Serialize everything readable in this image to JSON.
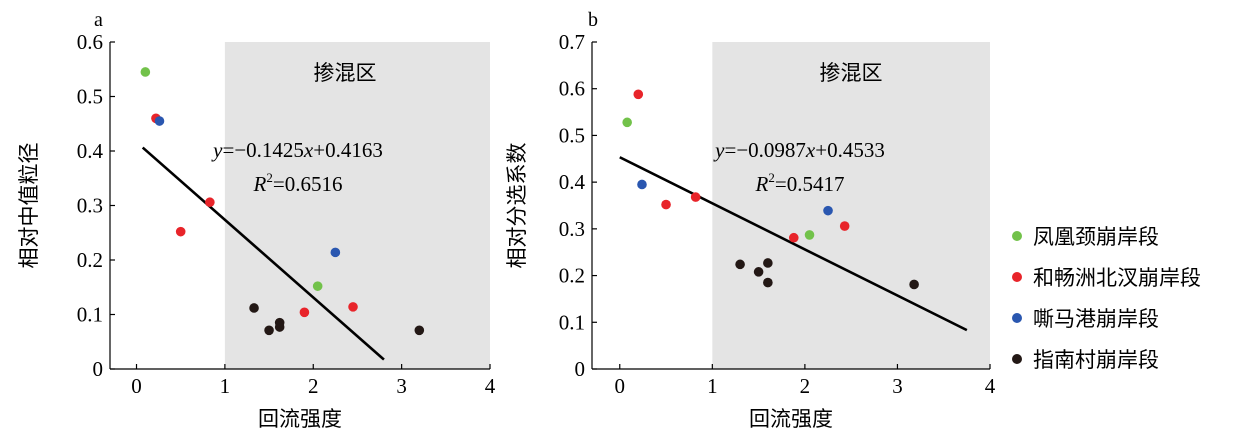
{
  "colors": {
    "shade": "#e4e4e4",
    "fenghuangjing": "#72c24a",
    "hechangzhou": "#e8242a",
    "simagang": "#2a57b0",
    "zhinancun": "#231815",
    "fit_line": "#000000"
  },
  "legend": {
    "placement": "right",
    "items": [
      {
        "label": "凤凰颈崩岸段",
        "color_key": "fenghuangjing"
      },
      {
        "label": "和畅洲北汊崩岸段",
        "color_key": "hechangzhou"
      },
      {
        "label": "嘶马港崩岸段",
        "color_key": "simagang"
      },
      {
        "label": "指南村崩岸段",
        "color_key": "zhinancun"
      }
    ]
  },
  "chart_data": [
    {
      "type": "scatter",
      "panel": "a",
      "xlabel": "回流强度",
      "ylabel": "相对中值粒径",
      "xlim": [
        -0.3,
        4
      ],
      "ylim": [
        0,
        0.6
      ],
      "xticks": [
        "0",
        "1",
        "2",
        "3",
        "4"
      ],
      "yticks": [
        "0",
        "0.1",
        "0.2",
        "0.3",
        "0.4",
        "0.5",
        "0.6"
      ],
      "shaded_region": {
        "label": "掺混区",
        "x_from": 1,
        "x_to": 4
      },
      "fit": {
        "slope": -0.1425,
        "intercept": 0.4163,
        "x_range": [
          0.07,
          2.8
        ],
        "eq_y": "y",
        "eq_x": "x",
        "eq_main": "=−0.1425",
        "eq_tail": "+0.4163",
        "r2_base": "R",
        "r2_sup": "2",
        "r2_value": "=0.6516"
      },
      "series": [
        {
          "name": "凤凰颈崩岸段",
          "color_key": "fenghuangjing",
          "points": [
            [
              0.1,
              0.545
            ],
            [
              2.05,
              0.152
            ]
          ]
        },
        {
          "name": "和畅洲北汊崩岸段",
          "color_key": "hechangzhou",
          "points": [
            [
              0.22,
              0.46
            ],
            [
              0.5,
              0.252
            ],
            [
              0.83,
              0.306
            ],
            [
              1.9,
              0.104
            ],
            [
              2.45,
              0.114
            ]
          ]
        },
        {
          "name": "嘶马港崩岸段",
          "color_key": "simagang",
          "points": [
            [
              0.26,
              0.455
            ],
            [
              2.25,
              0.214
            ]
          ]
        },
        {
          "name": "指南村崩岸段",
          "color_key": "zhinancun",
          "points": [
            [
              1.33,
              0.112
            ],
            [
              1.5,
              0.071
            ],
            [
              1.62,
              0.077
            ],
            [
              1.62,
              0.085
            ],
            [
              3.2,
              0.071
            ]
          ]
        }
      ]
    },
    {
      "type": "scatter",
      "panel": "b",
      "xlabel": "回流强度",
      "ylabel": "相对分选系数",
      "xlim": [
        -0.3,
        4
      ],
      "ylim": [
        0,
        0.7
      ],
      "xticks": [
        "0",
        "1",
        "2",
        "3",
        "4"
      ],
      "yticks": [
        "0",
        "0.1",
        "0.2",
        "0.3",
        "0.4",
        "0.5",
        "0.6",
        "0.7"
      ],
      "shaded_region": {
        "label": "掺混区",
        "x_from": 1,
        "x_to": 4
      },
      "fit": {
        "slope": -0.0987,
        "intercept": 0.4533,
        "x_range": [
          0,
          3.75
        ],
        "eq_y": "y",
        "eq_x": "x",
        "eq_main": "=−0.0987",
        "eq_tail": "+0.4533",
        "r2_base": "R",
        "r2_sup": "2",
        "r2_value": "=0.5417"
      },
      "series": [
        {
          "name": "凤凰颈崩岸段",
          "color_key": "fenghuangjing",
          "points": [
            [
              0.08,
              0.528
            ],
            [
              2.05,
              0.287
            ]
          ]
        },
        {
          "name": "和畅洲北汊崩岸段",
          "color_key": "hechangzhou",
          "points": [
            [
              0.2,
              0.588
            ],
            [
              0.5,
              0.352
            ],
            [
              0.82,
              0.368
            ],
            [
              1.88,
              0.281
            ],
            [
              2.43,
              0.306
            ]
          ]
        },
        {
          "name": "嘶马港崩岸段",
          "color_key": "simagang",
          "points": [
            [
              0.24,
              0.395
            ],
            [
              2.25,
              0.339
            ]
          ]
        },
        {
          "name": "指南村崩岸段",
          "color_key": "zhinancun",
          "points": [
            [
              1.3,
              0.224
            ],
            [
              1.5,
              0.208
            ],
            [
              1.6,
              0.227
            ],
            [
              1.6,
              0.185
            ],
            [
              3.18,
              0.181
            ]
          ]
        }
      ]
    }
  ]
}
